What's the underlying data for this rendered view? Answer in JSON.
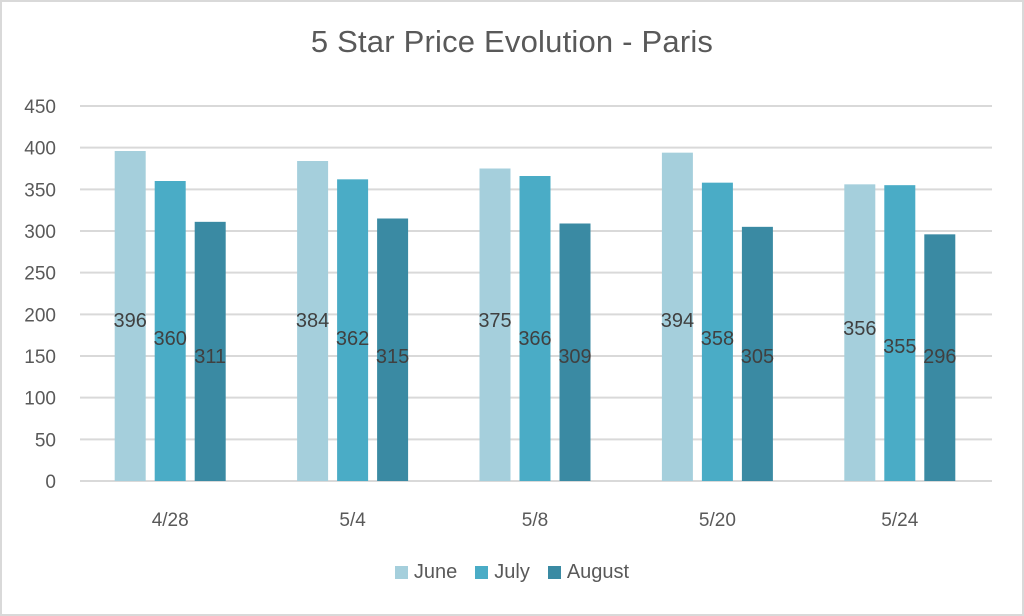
{
  "chart_data": {
    "type": "bar",
    "title": "5 Star Price Evolution - Paris",
    "xlabel": "",
    "ylabel": "",
    "categories": [
      "4/28",
      "5/4",
      "5/8",
      "5/20",
      "5/24"
    ],
    "series": [
      {
        "name": "June",
        "color": "#a5cfdc",
        "values": [
          396,
          384,
          375,
          394,
          356
        ]
      },
      {
        "name": "July",
        "color": "#4aacc6",
        "values": [
          360,
          362,
          366,
          358,
          355
        ]
      },
      {
        "name": "August",
        "color": "#3a8aa3",
        "values": [
          311,
          315,
          309,
          305,
          296
        ]
      }
    ],
    "ylim": [
      0,
      450
    ],
    "yticks": [
      0,
      50,
      100,
      150,
      200,
      250,
      300,
      350,
      400,
      450
    ],
    "grid": true,
    "legend_position": "bottom",
    "data_labels": true
  },
  "legend": {
    "items": [
      {
        "label": "June",
        "color": "#a5cfdc"
      },
      {
        "label": "July",
        "color": "#4aacc6"
      },
      {
        "label": "August",
        "color": "#3a8aa3"
      }
    ]
  }
}
